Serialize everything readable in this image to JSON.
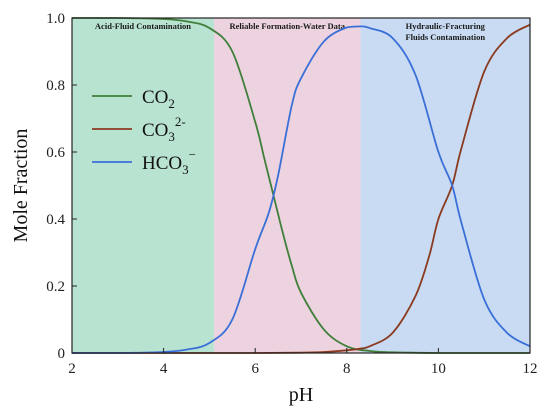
{
  "chart_data": {
    "type": "line",
    "xlabel": "pH",
    "ylabel": "Mole Fraction",
    "xlim": [
      2,
      12
    ],
    "ylim": [
      0,
      1
    ],
    "x_ticks": [
      2,
      4,
      6,
      8,
      10,
      12
    ],
    "y_ticks": [
      0,
      0.2,
      0.4,
      0.6,
      0.8,
      1.0
    ],
    "x_tick_labels": [
      "2",
      "4",
      "6",
      "8",
      "10",
      "12"
    ],
    "y_tick_labels": [
      "0",
      "0.2",
      "0.4",
      "0.6",
      "0.8",
      "1.0"
    ],
    "grid": false,
    "legend_position": "left",
    "regions": [
      {
        "x_range": [
          2,
          5.1
        ],
        "label_lines": [
          "Acid-Fluid Contamination"
        ],
        "color": "#b9e3d1"
      },
      {
        "x_range": [
          5.1,
          8.3
        ],
        "label_lines": [
          "Reliable Formation-Water Data"
        ],
        "color": "#ecd3df"
      },
      {
        "x_range": [
          8.3,
          12
        ],
        "label_lines": [
          "Hydraulic-Fracturing",
          "Fluids Contamination"
        ],
        "color": "#c9dbf2"
      }
    ],
    "series": [
      {
        "name": "CO2",
        "legend_base": "CO",
        "legend_sub": "2",
        "legend_sup": "",
        "color": "#3f7f3a",
        "x": [
          2,
          3,
          4,
          4.5,
          5,
          5.5,
          6,
          6.2,
          6.4,
          6.6,
          6.8,
          7,
          7.5,
          8,
          8.5,
          9,
          10,
          11,
          12
        ],
        "y": [
          1.0,
          1.0,
          0.997,
          0.99,
          0.97,
          0.9,
          0.69,
          0.58,
          0.47,
          0.36,
          0.26,
          0.18,
          0.07,
          0.02,
          0.006,
          0.002,
          0.0,
          0.0,
          0.0
        ]
      },
      {
        "name": "CO3 2-",
        "legend_base": "CO",
        "legend_sub": "3",
        "legend_sup": "2-",
        "color": "#8a3a1f",
        "x": [
          2,
          4,
          6,
          7,
          7.5,
          8,
          8.3,
          8.5,
          9,
          9.5,
          9.8,
          10,
          10.3,
          10.5,
          11,
          11.5,
          12
        ],
        "y": [
          0,
          0,
          0,
          0.001,
          0.003,
          0.008,
          0.013,
          0.02,
          0.06,
          0.17,
          0.29,
          0.4,
          0.5,
          0.61,
          0.84,
          0.94,
          0.98
        ]
      },
      {
        "name": "HCO3-",
        "legend_base": "HCO",
        "legend_sub": "3",
        "legend_sup": "−",
        "color": "#3a6fd8",
        "x": [
          2,
          3,
          4,
          4.5,
          5,
          5.5,
          6,
          6.3,
          6.5,
          6.8,
          7,
          7.5,
          8,
          8.3,
          8.5,
          9,
          9.5,
          10,
          10.3,
          10.5,
          11,
          11.5,
          12
        ],
        "y": [
          0.0,
          0.0,
          0.003,
          0.01,
          0.03,
          0.1,
          0.31,
          0.42,
          0.53,
          0.74,
          0.82,
          0.93,
          0.972,
          0.975,
          0.97,
          0.94,
          0.83,
          0.6,
          0.5,
          0.39,
          0.16,
          0.06,
          0.02
        ]
      }
    ]
  }
}
